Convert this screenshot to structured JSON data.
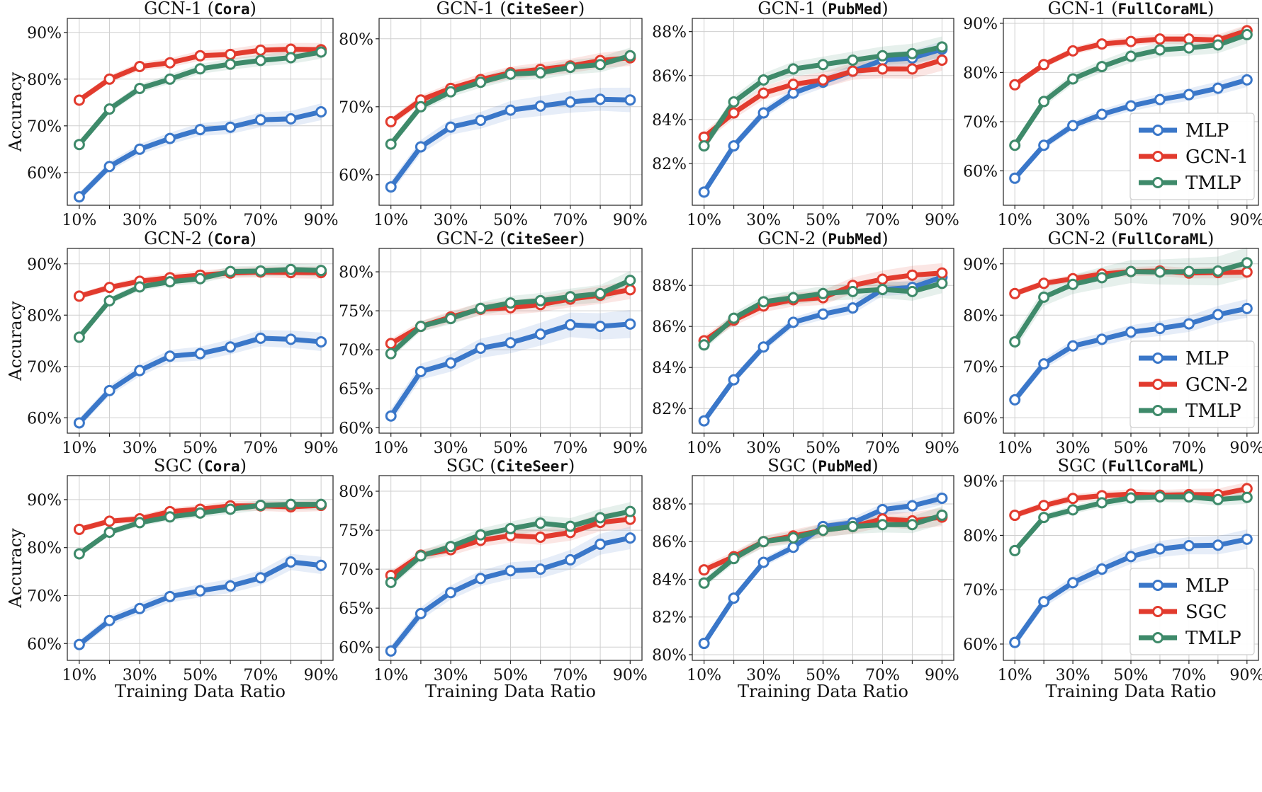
{
  "figure": {
    "colors": {
      "MLP": "#3a77c9",
      "GCN": "#e23b2e",
      "TMLP": "#3e8a6a"
    },
    "x_axis_label": "Training Data Ratio",
    "y_axis_label": "Accuracy"
  },
  "chart_data": [
    {
      "type": "line",
      "title_model": "GCN-1",
      "title_dataset": "Cora",
      "ylim": [
        53,
        93
      ],
      "yticks": [
        "60%",
        "70%",
        "80%",
        "90%"
      ],
      "ytick_values": [
        60,
        70,
        80,
        90
      ],
      "categories": [
        "10%",
        "20%",
        "30%",
        "40%",
        "50%",
        "60%",
        "70%",
        "80%",
        "90%"
      ],
      "xtick_labels": [
        "10%",
        "30%",
        "50%",
        "70%",
        "90%"
      ],
      "legend": null,
      "series": [
        {
          "name": "MLP",
          "color_key": "MLP",
          "band": 1.5,
          "values": [
            54.8,
            61.3,
            65.0,
            67.3,
            69.2,
            69.7,
            71.3,
            71.5,
            73.0
          ]
        },
        {
          "name": "GCN-1",
          "color_key": "GCN",
          "band": 1.2,
          "values": [
            75.5,
            80.0,
            82.7,
            83.5,
            85.0,
            85.3,
            86.2,
            86.4,
            86.3
          ]
        },
        {
          "name": "TMLP",
          "color_key": "TMLP",
          "band": 1.2,
          "values": [
            66.0,
            73.6,
            78.0,
            80.0,
            82.2,
            83.2,
            84.0,
            84.6,
            85.8
          ]
        }
      ]
    },
    {
      "type": "line",
      "title_model": "GCN-1",
      "title_dataset": "CiteSeer",
      "ylim": [
        55.5,
        83
      ],
      "yticks": [
        "60%",
        "70%",
        "80%"
      ],
      "ytick_values": [
        60,
        70,
        80
      ],
      "categories": [
        "10%",
        "20%",
        "30%",
        "40%",
        "50%",
        "60%",
        "70%",
        "80%",
        "90%"
      ],
      "xtick_labels": [
        "10%",
        "30%",
        "50%",
        "70%",
        "90%"
      ],
      "legend": null,
      "series": [
        {
          "name": "MLP",
          "color_key": "MLP",
          "band": 1.5,
          "values": [
            58.2,
            64.1,
            67.0,
            68.0,
            69.5,
            70.1,
            70.7,
            71.1,
            71.0
          ]
        },
        {
          "name": "GCN-1",
          "color_key": "GCN",
          "band": 1.0,
          "values": [
            67.8,
            71.0,
            72.7,
            74.0,
            75.0,
            75.5,
            76.0,
            76.8,
            77.2
          ]
        },
        {
          "name": "TMLP",
          "color_key": "TMLP",
          "band": 1.0,
          "values": [
            64.5,
            70.0,
            72.2,
            73.6,
            74.8,
            75.0,
            75.8,
            76.2,
            77.5
          ]
        }
      ]
    },
    {
      "type": "line",
      "title_model": "GCN-1",
      "title_dataset": "PubMed",
      "ylim": [
        80.1,
        88.6
      ],
      "yticks": [
        "82%",
        "84%",
        "86%",
        "88%"
      ],
      "ytick_values": [
        82,
        84,
        86,
        88
      ],
      "categories": [
        "10%",
        "20%",
        "30%",
        "40%",
        "50%",
        "60%",
        "70%",
        "80%",
        "90%"
      ],
      "xtick_labels": [
        "10%",
        "30%",
        "50%",
        "70%",
        "90%"
      ],
      "legend": null,
      "series": [
        {
          "name": "MLP",
          "color_key": "MLP",
          "band": 0.3,
          "values": [
            80.7,
            82.8,
            84.3,
            85.2,
            85.7,
            86.2,
            86.7,
            86.8,
            87.2
          ]
        },
        {
          "name": "GCN-1",
          "color_key": "GCN",
          "band": 0.4,
          "values": [
            83.2,
            84.3,
            85.2,
            85.6,
            85.8,
            86.2,
            86.3,
            86.3,
            86.7
          ]
        },
        {
          "name": "TMLP",
          "color_key": "TMLP",
          "band": 0.4,
          "values": [
            82.8,
            84.8,
            85.8,
            86.3,
            86.5,
            86.7,
            86.9,
            87.0,
            87.3
          ]
        }
      ]
    },
    {
      "type": "line",
      "title_model": "GCN-1",
      "title_dataset": "FullCoraML",
      "ylim": [
        53,
        91
      ],
      "yticks": [
        "60%",
        "70%",
        "80%",
        "90%"
      ],
      "ytick_values": [
        60,
        70,
        80,
        90
      ],
      "categories": [
        "10%",
        "20%",
        "30%",
        "40%",
        "50%",
        "60%",
        "70%",
        "80%",
        "90%"
      ],
      "xtick_labels": [
        "10%",
        "30%",
        "50%",
        "70%",
        "90%"
      ],
      "legend": {
        "items": [
          "MLP",
          "GCN-1",
          "TMLP"
        ]
      },
      "series": [
        {
          "name": "MLP",
          "color_key": "MLP",
          "band": 1.2,
          "values": [
            58.5,
            65.2,
            69.2,
            71.5,
            73.2,
            74.5,
            75.5,
            76.8,
            78.5
          ]
        },
        {
          "name": "GCN-1",
          "color_key": "GCN",
          "band": 1.0,
          "values": [
            77.5,
            81.6,
            84.4,
            85.8,
            86.3,
            86.8,
            86.8,
            86.6,
            88.5
          ]
        },
        {
          "name": "TMLP",
          "color_key": "TMLP",
          "band": 1.5,
          "values": [
            65.2,
            74.1,
            78.7,
            81.2,
            83.3,
            84.6,
            85.0,
            85.6,
            87.7
          ]
        }
      ]
    },
    {
      "type": "line",
      "title_model": "GCN-2",
      "title_dataset": "Cora",
      "ylim": [
        57,
        93
      ],
      "yticks": [
        "60%",
        "70%",
        "80%",
        "90%"
      ],
      "ytick_values": [
        60,
        70,
        80,
        90
      ],
      "categories": [
        "10%",
        "20%",
        "30%",
        "40%",
        "50%",
        "60%",
        "70%",
        "80%",
        "90%"
      ],
      "xtick_labels": [
        "10%",
        "30%",
        "50%",
        "70%",
        "90%"
      ],
      "legend": null,
      "series": [
        {
          "name": "MLP",
          "color_key": "MLP",
          "band": 1.5,
          "values": [
            59.0,
            65.3,
            69.2,
            72.0,
            72.5,
            73.8,
            75.5,
            75.3,
            74.8
          ]
        },
        {
          "name": "GCN-2",
          "color_key": "GCN",
          "band": 1.0,
          "values": [
            83.7,
            85.4,
            86.6,
            87.3,
            87.8,
            88.2,
            88.4,
            88.3,
            88.3
          ]
        },
        {
          "name": "TMLP",
          "color_key": "TMLP",
          "band": 1.0,
          "values": [
            75.7,
            82.8,
            85.5,
            86.5,
            87.1,
            88.5,
            88.6,
            88.9,
            88.7
          ]
        }
      ]
    },
    {
      "type": "line",
      "title_model": "GCN-2",
      "title_dataset": "CiteSeer",
      "ylim": [
        59.3,
        83
      ],
      "yticks": [
        "60%",
        "65%",
        "70%",
        "75%",
        "80%"
      ],
      "ytick_values": [
        60,
        65,
        70,
        75,
        80
      ],
      "categories": [
        "10%",
        "20%",
        "30%",
        "40%",
        "50%",
        "60%",
        "70%",
        "80%",
        "90%"
      ],
      "xtick_labels": [
        "10%",
        "30%",
        "50%",
        "70%",
        "90%"
      ],
      "legend": null,
      "series": [
        {
          "name": "MLP",
          "color_key": "MLP",
          "band": 1.5,
          "values": [
            61.5,
            67.2,
            68.3,
            70.2,
            70.9,
            72.0,
            73.2,
            73.0,
            73.3
          ]
        },
        {
          "name": "GCN-2",
          "color_key": "GCN",
          "band": 1.0,
          "values": [
            70.8,
            73.0,
            74.2,
            75.2,
            75.4,
            75.8,
            76.5,
            77.0,
            77.7
          ]
        },
        {
          "name": "TMLP",
          "color_key": "TMLP",
          "band": 1.0,
          "values": [
            69.5,
            73.0,
            74.0,
            75.3,
            76.0,
            76.3,
            76.8,
            77.2,
            78.9
          ]
        }
      ]
    },
    {
      "type": "line",
      "title_model": "GCN-2",
      "title_dataset": "PubMed",
      "ylim": [
        80.8,
        89.8
      ],
      "yticks": [
        "82%",
        "84%",
        "86%",
        "88%"
      ],
      "ytick_values": [
        82,
        84,
        86,
        88
      ],
      "categories": [
        "10%",
        "20%",
        "30%",
        "40%",
        "50%",
        "60%",
        "70%",
        "80%",
        "90%"
      ],
      "xtick_labels": [
        "10%",
        "30%",
        "50%",
        "70%",
        "90%"
      ],
      "legend": null,
      "series": [
        {
          "name": "MLP",
          "color_key": "MLP",
          "band": 0.3,
          "values": [
            81.4,
            83.4,
            85.0,
            86.2,
            86.6,
            86.9,
            87.8,
            87.9,
            88.4
          ]
        },
        {
          "name": "GCN-2",
          "color_key": "GCN",
          "band": 0.4,
          "values": [
            85.3,
            86.3,
            87.0,
            87.3,
            87.4,
            88.0,
            88.3,
            88.5,
            88.6
          ]
        },
        {
          "name": "TMLP",
          "color_key": "TMLP",
          "band": 0.4,
          "values": [
            85.1,
            86.4,
            87.2,
            87.4,
            87.6,
            87.7,
            87.8,
            87.7,
            88.1
          ]
        }
      ]
    },
    {
      "type": "line",
      "title_model": "GCN-2",
      "title_dataset": "FullCoraML",
      "ylim": [
        57,
        93
      ],
      "yticks": [
        "60%",
        "70%",
        "80%",
        "90%"
      ],
      "ytick_values": [
        60,
        70,
        80,
        90
      ],
      "categories": [
        "10%",
        "20%",
        "30%",
        "40%",
        "50%",
        "60%",
        "70%",
        "80%",
        "90%"
      ],
      "xtick_labels": [
        "10%",
        "30%",
        "50%",
        "70%",
        "90%"
      ],
      "legend": {
        "items": [
          "MLP",
          "GCN-2",
          "TMLP"
        ]
      },
      "series": [
        {
          "name": "MLP",
          "color_key": "MLP",
          "band": 1.5,
          "values": [
            63.5,
            70.5,
            74.0,
            75.3,
            76.7,
            77.4,
            78.3,
            80.1,
            81.3
          ]
        },
        {
          "name": "GCN-2",
          "color_key": "GCN",
          "band": 1.0,
          "values": [
            84.2,
            86.2,
            87.1,
            88.0,
            88.5,
            88.6,
            88.2,
            88.3,
            88.4
          ]
        },
        {
          "name": "TMLP",
          "color_key": "TMLP",
          "band": 2.5,
          "values": [
            74.8,
            83.5,
            86.0,
            87.3,
            88.5,
            88.4,
            88.5,
            88.6,
            90.2
          ]
        }
      ]
    },
    {
      "type": "line",
      "title_model": "SGC",
      "title_dataset": "Cora",
      "ylim": [
        56.5,
        95
      ],
      "yticks": [
        "60%",
        "70%",
        "80%",
        "90%"
      ],
      "ytick_values": [
        60,
        70,
        80,
        90
      ],
      "categories": [
        "10%",
        "20%",
        "30%",
        "40%",
        "50%",
        "60%",
        "70%",
        "80%",
        "90%"
      ],
      "xtick_labels": [
        "10%",
        "30%",
        "50%",
        "70%",
        "90%"
      ],
      "legend": null,
      "series": [
        {
          "name": "MLP",
          "color_key": "MLP",
          "band": 1.5,
          "values": [
            59.8,
            64.8,
            67.3,
            69.8,
            71.0,
            72.0,
            73.7,
            77.0,
            76.3
          ]
        },
        {
          "name": "SGC",
          "color_key": "GCN",
          "band": 1.0,
          "values": [
            83.8,
            85.5,
            86.0,
            87.5,
            88.0,
            88.7,
            88.7,
            88.5,
            88.8
          ]
        },
        {
          "name": "TMLP",
          "color_key": "TMLP",
          "band": 1.0,
          "values": [
            78.7,
            83.2,
            85.2,
            86.4,
            87.2,
            88.0,
            88.8,
            89.0,
            89.0
          ]
        }
      ]
    },
    {
      "type": "line",
      "title_model": "SGC",
      "title_dataset": "CiteSeer",
      "ylim": [
        58.3,
        82
      ],
      "yticks": [
        "60%",
        "65%",
        "70%",
        "75%",
        "80%"
      ],
      "ytick_values": [
        60,
        65,
        70,
        75,
        80
      ],
      "categories": [
        "10%",
        "20%",
        "30%",
        "40%",
        "50%",
        "60%",
        "70%",
        "80%",
        "90%"
      ],
      "xtick_labels": [
        "10%",
        "30%",
        "50%",
        "70%",
        "90%"
      ],
      "legend": null,
      "series": [
        {
          "name": "MLP",
          "color_key": "MLP",
          "band": 1.2,
          "values": [
            59.5,
            64.3,
            67.0,
            68.8,
            69.8,
            70.0,
            71.2,
            73.2,
            74.0
          ]
        },
        {
          "name": "SGC",
          "color_key": "GCN",
          "band": 1.0,
          "values": [
            69.2,
            71.8,
            72.5,
            73.7,
            74.3,
            74.1,
            74.7,
            76.0,
            76.4
          ]
        },
        {
          "name": "TMLP",
          "color_key": "TMLP",
          "band": 1.0,
          "values": [
            68.3,
            71.7,
            72.9,
            74.4,
            75.2,
            75.9,
            75.5,
            76.6,
            77.4
          ]
        }
      ]
    },
    {
      "type": "line",
      "title_model": "SGC",
      "title_dataset": "PubMed",
      "ylim": [
        79.7,
        89.5
      ],
      "yticks": [
        "80%",
        "82%",
        "84%",
        "86%",
        "88%"
      ],
      "ytick_values": [
        80,
        82,
        84,
        86,
        88
      ],
      "categories": [
        "10%",
        "20%",
        "30%",
        "40%",
        "50%",
        "60%",
        "70%",
        "80%",
        "90%"
      ],
      "xtick_labels": [
        "10%",
        "30%",
        "50%",
        "70%",
        "90%"
      ],
      "legend": null,
      "series": [
        {
          "name": "MLP",
          "color_key": "MLP",
          "band": 0.3,
          "values": [
            80.6,
            83.0,
            84.9,
            85.7,
            86.8,
            87.0,
            87.7,
            87.9,
            88.3
          ]
        },
        {
          "name": "SGC",
          "color_key": "GCN",
          "band": 0.4,
          "values": [
            84.5,
            85.2,
            86.0,
            86.3,
            86.6,
            86.8,
            87.2,
            87.1,
            87.3
          ]
        },
        {
          "name": "TMLP",
          "color_key": "TMLP",
          "band": 0.4,
          "values": [
            83.8,
            85.1,
            86.0,
            86.2,
            86.6,
            86.8,
            86.9,
            86.9,
            87.4
          ]
        }
      ]
    },
    {
      "type": "line",
      "title_model": "SGC",
      "title_dataset": "FullCoraML",
      "ylim": [
        57,
        91
      ],
      "yticks": [
        "60%",
        "70%",
        "80%",
        "90%"
      ],
      "ytick_values": [
        60,
        70,
        80,
        90
      ],
      "categories": [
        "10%",
        "20%",
        "30%",
        "40%",
        "50%",
        "60%",
        "70%",
        "80%",
        "90%"
      ],
      "xtick_labels": [
        "10%",
        "30%",
        "50%",
        "70%",
        "90%"
      ],
      "legend": {
        "items": [
          "MLP",
          "SGC",
          "TMLP"
        ]
      },
      "series": [
        {
          "name": "MLP",
          "color_key": "MLP",
          "band": 1.5,
          "values": [
            60.3,
            67.8,
            71.3,
            73.8,
            76.1,
            77.5,
            78.1,
            78.2,
            79.3
          ]
        },
        {
          "name": "SGC",
          "color_key": "GCN",
          "band": 1.0,
          "values": [
            83.7,
            85.5,
            86.8,
            87.3,
            87.6,
            87.4,
            87.5,
            87.5,
            88.6
          ]
        },
        {
          "name": "TMLP",
          "color_key": "TMLP",
          "band": 1.0,
          "values": [
            77.2,
            83.3,
            84.7,
            86.0,
            86.9,
            87.1,
            87.1,
            86.6,
            87.0
          ]
        }
      ]
    }
  ]
}
